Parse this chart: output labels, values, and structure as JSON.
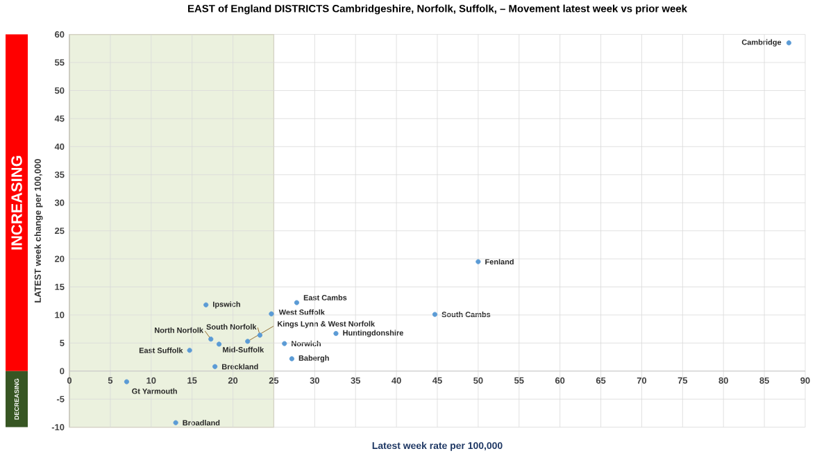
{
  "chart_data": {
    "type": "scatter",
    "title": "EAST of England DISTRICTS Cambridgeshire, Norfolk, Suffolk, – Movement latest week vs prior week",
    "xlabel": "Latest week rate per 100,000",
    "ylabel": "LATEST week change per 100,000",
    "x": [
      88,
      50,
      44.7,
      32.6,
      27.8,
      24.7,
      21.8,
      23.3,
      26.3,
      27.2,
      16.7,
      17.3,
      18.3,
      14.7,
      17.8,
      7,
      13
    ],
    "values": [
      58.5,
      19.5,
      10.1,
      6.7,
      12.2,
      10.2,
      5.3,
      6.4,
      4.9,
      2.2,
      11.8,
      5.7,
      4.8,
      3.7,
      0.8,
      -1.9,
      -9.2
    ],
    "value_labels": [
      "Cambridge",
      "Fenland",
      "South Cambs",
      "Huntingdonshire",
      "East Cambs",
      "West Suffolk",
      "Kings Lynn & West Norfolk",
      "South Norfolk",
      "Norwich",
      "Babergh",
      "Ipswich",
      "North Norfolk",
      "Mid-Suffolk",
      "East Suffolk",
      "Breckland",
      "Gt Yarmouth",
      "Broadland"
    ],
    "color": "#5b9bd5",
    "xlim": [
      0,
      90
    ],
    "ylim": [
      -10,
      60
    ],
    "xticks": [
      0,
      5,
      10,
      15,
      20,
      25,
      30,
      35,
      40,
      45,
      50,
      55,
      60,
      65,
      70,
      75,
      80,
      85,
      90
    ],
    "yticks": [
      -10,
      -5,
      0,
      5,
      10,
      15,
      20,
      25,
      30,
      35,
      40,
      45,
      50,
      55,
      60
    ],
    "grid": true,
    "annotations": [
      "INCREASING",
      "DECREASING"
    ],
    "bands": [
      {
        "axis": "x",
        "from": 0,
        "to": 25,
        "color": "#ebf1de"
      }
    ]
  }
}
